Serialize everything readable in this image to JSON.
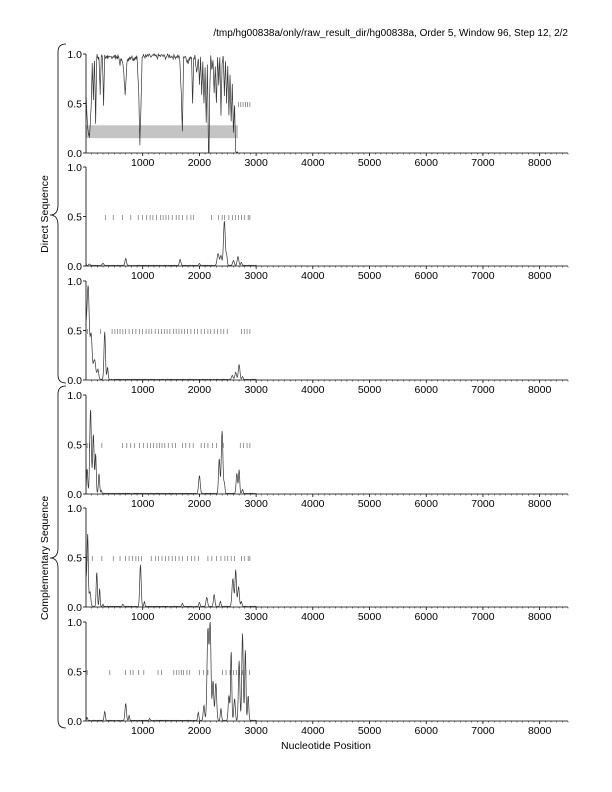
{
  "header": {
    "title": "/tmp/hg00838a/only/raw_result_dir/hg00838a, Order 5, Window 96, Step 12, 2/2"
  },
  "labels": {
    "xlabel": "Nucleotide Position",
    "group_direct": "Direct Sequence",
    "group_complementary": "Complementary Sequence"
  },
  "chart_data": {
    "type": "line",
    "x_ticks": [
      1000,
      2000,
      3000,
      4000,
      5000,
      6000,
      7000,
      8000
    ],
    "y_ticks": [
      "0.0",
      "0.5",
      "1.0"
    ],
    "xlim": [
      0,
      8500
    ],
    "ylim": [
      0,
      1
    ],
    "grid": false,
    "panels": [
      {
        "group": "direct",
        "gray_band": {
          "x": [
            0,
            2680
          ],
          "y": [
            0.15,
            0.28
          ]
        },
        "tick_marks": {
          "y": 0.49,
          "x": [
            2690,
            2730,
            2770,
            2810,
            2850,
            2890
          ]
        },
        "peaks": [],
        "noisy_profile": [
          [
            0,
            0.6
          ],
          [
            30,
            0.25
          ],
          [
            60,
            0.15
          ],
          [
            90,
            0.45
          ],
          [
            110,
            0.9
          ],
          [
            130,
            0.55
          ],
          [
            150,
            0.95
          ],
          [
            170,
            0.3
          ],
          [
            190,
            0.98
          ],
          [
            210,
            0.97
          ],
          [
            230,
            0.95
          ],
          [
            250,
            0.6
          ],
          [
            270,
            0.98
          ],
          [
            290,
            0.97
          ],
          [
            310,
            0.5
          ],
          [
            330,
            0.97
          ],
          [
            350,
            0.96
          ],
          [
            370,
            0.98
          ],
          [
            390,
            0.97
          ],
          [
            420,
            0.95
          ],
          [
            450,
            0.97
          ],
          [
            480,
            0.98
          ],
          [
            510,
            0.97
          ],
          [
            540,
            0.97
          ],
          [
            570,
            0.97
          ],
          [
            600,
            0.9
          ],
          [
            630,
            0.97
          ],
          [
            660,
            0.85
          ],
          [
            690,
            0.6
          ],
          [
            720,
            0.9
          ],
          [
            750,
            0.96
          ],
          [
            780,
            0.97
          ],
          [
            810,
            0.97
          ],
          [
            840,
            0.95
          ],
          [
            870,
            0.97
          ],
          [
            900,
            0.97
          ],
          [
            930,
            0.6
          ],
          [
            950,
            0.1
          ],
          [
            970,
            0.5
          ],
          [
            990,
            0.97
          ],
          [
            1020,
            0.98
          ],
          [
            1060,
            0.97
          ],
          [
            1100,
            0.98
          ],
          [
            1150,
            0.97
          ],
          [
            1200,
            0.98
          ],
          [
            1250,
            0.97
          ],
          [
            1300,
            0.98
          ],
          [
            1350,
            0.98
          ],
          [
            1400,
            0.97
          ],
          [
            1450,
            0.98
          ],
          [
            1500,
            0.98
          ],
          [
            1550,
            0.97
          ],
          [
            1600,
            0.98
          ],
          [
            1650,
            0.97
          ],
          [
            1680,
            0.6
          ],
          [
            1700,
            0.2
          ],
          [
            1720,
            0.97
          ],
          [
            1760,
            0.98
          ],
          [
            1800,
            0.9
          ],
          [
            1830,
            0.97
          ],
          [
            1860,
            0.98
          ],
          [
            1880,
            0.5
          ],
          [
            1900,
            0.95
          ],
          [
            1920,
            0.97
          ],
          [
            1950,
            0.8
          ],
          [
            1980,
            0.97
          ],
          [
            2000,
            0.7
          ],
          [
            2020,
            0.95
          ],
          [
            2040,
            0.6
          ],
          [
            2060,
            0.9
          ],
          [
            2080,
            0.5
          ],
          [
            2100,
            0.85
          ],
          [
            2120,
            0.3
          ],
          [
            2140,
            0.9
          ],
          [
            2160,
            0.0
          ],
          [
            2170,
            0.0
          ],
          [
            2180,
            0.6
          ],
          [
            2200,
            0.97
          ],
          [
            2220,
            0.85
          ],
          [
            2240,
            0.95
          ],
          [
            2260,
            0.6
          ],
          [
            2280,
            0.9
          ],
          [
            2300,
            0.5
          ],
          [
            2320,
            0.97
          ],
          [
            2340,
            0.7
          ],
          [
            2360,
            0.95
          ],
          [
            2380,
            0.4
          ],
          [
            2400,
            0.9
          ],
          [
            2420,
            0.97
          ],
          [
            2440,
            0.6
          ],
          [
            2460,
            0.95
          ],
          [
            2480,
            0.5
          ],
          [
            2500,
            0.9
          ],
          [
            2520,
            0.4
          ],
          [
            2540,
            0.8
          ],
          [
            2560,
            0.3
          ],
          [
            2580,
            0.7
          ],
          [
            2600,
            0.2
          ],
          [
            2620,
            0.5
          ],
          [
            2640,
            0.0
          ],
          [
            2680,
            0.0
          ]
        ]
      },
      {
        "group": "direct",
        "gray_band": null,
        "tick_marks": {
          "y": 0.49,
          "x": [
            340,
            480,
            640,
            790,
            920,
            1000,
            1070,
            1130,
            1180,
            1240,
            1310,
            1360,
            1410,
            1460,
            1520,
            1590,
            1640,
            1700,
            1780,
            1850,
            1900,
            2210,
            2340,
            2400,
            2440,
            2520,
            2580,
            2640,
            2690,
            2740,
            2800,
            2860,
            2890
          ]
        },
        "peaks": [
          [
            0.0,
            6,
            0.03
          ],
          [
            60,
            18,
            0.015
          ],
          [
            300,
            20,
            0.02
          ],
          [
            700,
            18,
            0.07
          ],
          [
            1660,
            18,
            0.06
          ],
          [
            2000,
            15,
            0.02
          ],
          [
            2330,
            25,
            0.12
          ],
          [
            2380,
            20,
            0.1
          ],
          [
            2440,
            22,
            0.45
          ],
          [
            2480,
            15,
            0.1
          ],
          [
            2600,
            20,
            0.05
          ],
          [
            2680,
            20,
            0.09
          ],
          [
            2740,
            15,
            0.03
          ]
        ],
        "noisy_profile": []
      },
      {
        "group": "direct",
        "gray_band": null,
        "tick_marks": {
          "y": 0.49,
          "x": [
            30,
            260,
            460,
            510,
            560,
            600,
            650,
            700,
            760,
            820,
            880,
            940,
            1000,
            1060,
            1110,
            1160,
            1220,
            1280,
            1330,
            1380,
            1430,
            1480,
            1540,
            1590,
            1640,
            1690,
            1740,
            1790,
            1850,
            1910,
            1970,
            2030,
            2090,
            2150,
            2200,
            2260,
            2320,
            2380,
            2430,
            2490,
            2740,
            2790,
            2840,
            2890
          ]
        },
        "peaks": [
          [
            0,
            30,
            0.5
          ],
          [
            40,
            25,
            0.85
          ],
          [
            90,
            25,
            0.45
          ],
          [
            150,
            30,
            0.2
          ],
          [
            210,
            20,
            0.1
          ],
          [
            330,
            18,
            0.48
          ],
          [
            380,
            15,
            0.12
          ],
          [
            2580,
            20,
            0.04
          ],
          [
            2640,
            20,
            0.07
          ],
          [
            2700,
            20,
            0.15
          ],
          [
            2760,
            15,
            0.03
          ]
        ],
        "noisy_profile": []
      },
      {
        "group": "complementary",
        "gray_band": null,
        "tick_marks": {
          "y": 0.49,
          "x": [
            20,
            60,
            280,
            640,
            720,
            790,
            860,
            940,
            1010,
            1080,
            1140,
            1190,
            1250,
            1300,
            1340,
            1390,
            1450,
            1520,
            1580,
            1700,
            1760,
            1830,
            1890,
            2030,
            2090,
            2150,
            2230,
            2300,
            2420,
            2720,
            2780,
            2840,
            2890
          ]
        },
        "peaks": [
          [
            20,
            15,
            0.25
          ],
          [
            80,
            20,
            0.85
          ],
          [
            130,
            18,
            0.6
          ],
          [
            170,
            15,
            0.4
          ],
          [
            230,
            15,
            0.2
          ],
          [
            270,
            12,
            0.03
          ],
          [
            2000,
            20,
            0.18
          ],
          [
            2350,
            18,
            0.35
          ],
          [
            2400,
            20,
            0.63
          ],
          [
            2440,
            15,
            0.1
          ],
          [
            2660,
            18,
            0.2
          ],
          [
            2700,
            15,
            0.24
          ],
          [
            2760,
            15,
            0.04
          ]
        ],
        "noisy_profile": []
      },
      {
        "group": "complementary",
        "gray_band": null,
        "tick_marks": {
          "y": 0.49,
          "x": [
            20,
            110,
            280,
            480,
            600,
            700,
            760,
            820,
            880,
            930,
            980,
            1150,
            1230,
            1280,
            1340,
            1400,
            1460,
            1520,
            1580,
            1640,
            1700,
            1790,
            1860,
            1920,
            1980,
            2150,
            2220,
            2300,
            2380,
            2450,
            2500,
            2560,
            2620,
            2740,
            2800,
            2860,
            2890
          ]
        },
        "peaks": [
          [
            0,
            20,
            0.28
          ],
          [
            30,
            15,
            0.7
          ],
          [
            70,
            20,
            0.15
          ],
          [
            190,
            15,
            0.35
          ],
          [
            240,
            12,
            0.18
          ],
          [
            300,
            12,
            0.02
          ],
          [
            650,
            15,
            0.02
          ],
          [
            960,
            18,
            0.42
          ],
          [
            1030,
            12,
            0.05
          ],
          [
            1700,
            15,
            0.03
          ],
          [
            2000,
            15,
            0.04
          ],
          [
            2130,
            20,
            0.09
          ],
          [
            2260,
            18,
            0.12
          ],
          [
            2370,
            15,
            0.05
          ],
          [
            2590,
            22,
            0.28
          ],
          [
            2640,
            18,
            0.37
          ],
          [
            2690,
            20,
            0.2
          ],
          [
            2740,
            15,
            0.05
          ]
        ],
        "noisy_profile": []
      },
      {
        "group": "complementary",
        "gray_band": null,
        "tick_marks": {
          "y": 0.49,
          "x": [
            20,
            420,
            700,
            780,
            830,
            930,
            1020,
            1270,
            1330,
            1550,
            1600,
            1640,
            1680,
            1720,
            1780,
            1830,
            2000,
            2070,
            2150,
            2410,
            2470,
            2540,
            2600,
            2650,
            2700,
            2760,
            2820,
            2880
          ]
        },
        "peaks": [
          [
            20,
            12,
            0.03
          ],
          [
            330,
            15,
            0.09
          ],
          [
            700,
            18,
            0.17
          ],
          [
            760,
            12,
            0.05
          ],
          [
            1120,
            12,
            0.02
          ],
          [
            1980,
            15,
            0.08
          ],
          [
            2080,
            18,
            0.15
          ],
          [
            2150,
            22,
            0.92
          ],
          [
            2190,
            20,
            0.97
          ],
          [
            2240,
            18,
            0.4
          ],
          [
            2290,
            20,
            0.38
          ],
          [
            2380,
            15,
            0.12
          ],
          [
            2520,
            18,
            0.25
          ],
          [
            2560,
            15,
            0.7
          ],
          [
            2620,
            18,
            0.22
          ],
          [
            2700,
            18,
            0.6
          ],
          [
            2760,
            18,
            0.88
          ],
          [
            2810,
            15,
            0.72
          ],
          [
            2860,
            15,
            0.25
          ]
        ],
        "noisy_profile": []
      }
    ]
  }
}
